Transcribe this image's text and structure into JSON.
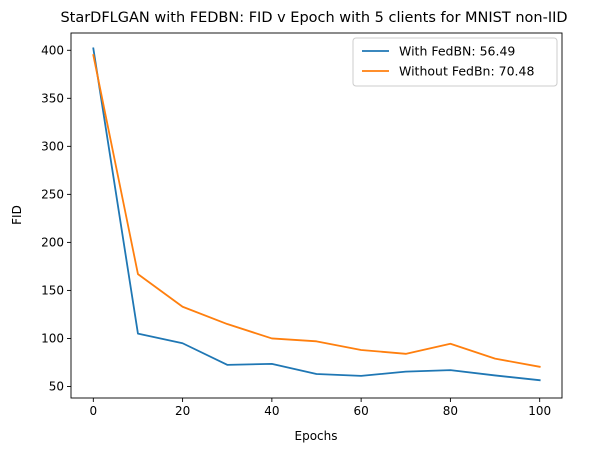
{
  "chart_data": {
    "type": "line",
    "title": "StarDFLGAN with FEDBN: FID v Epoch with 5 clients for MNIST non-IID",
    "xlabel": "Epochs",
    "ylabel": "FID",
    "x": [
      0,
      10,
      20,
      30,
      40,
      50,
      60,
      70,
      80,
      90,
      100
    ],
    "xlim": [
      -5,
      105
    ],
    "ylim": [
      38,
      418
    ],
    "xticks": [
      0,
      20,
      40,
      60,
      80,
      100
    ],
    "yticks": [
      50,
      100,
      150,
      200,
      250,
      300,
      350,
      400
    ],
    "grid": false,
    "legend_position": "top-right",
    "series": [
      {
        "name": "With FedBN: 56.49",
        "color": "#1f77b4",
        "values": [
          402,
          105,
          95,
          72.5,
          73.5,
          63,
          61,
          65.5,
          67,
          61.5,
          56.5
        ]
      },
      {
        "name": "Without FedBn: 70.48",
        "color": "#ff7f0e",
        "values": [
          395,
          167,
          133,
          115,
          100,
          97,
          88,
          84,
          94.5,
          79,
          70.5
        ]
      }
    ]
  }
}
